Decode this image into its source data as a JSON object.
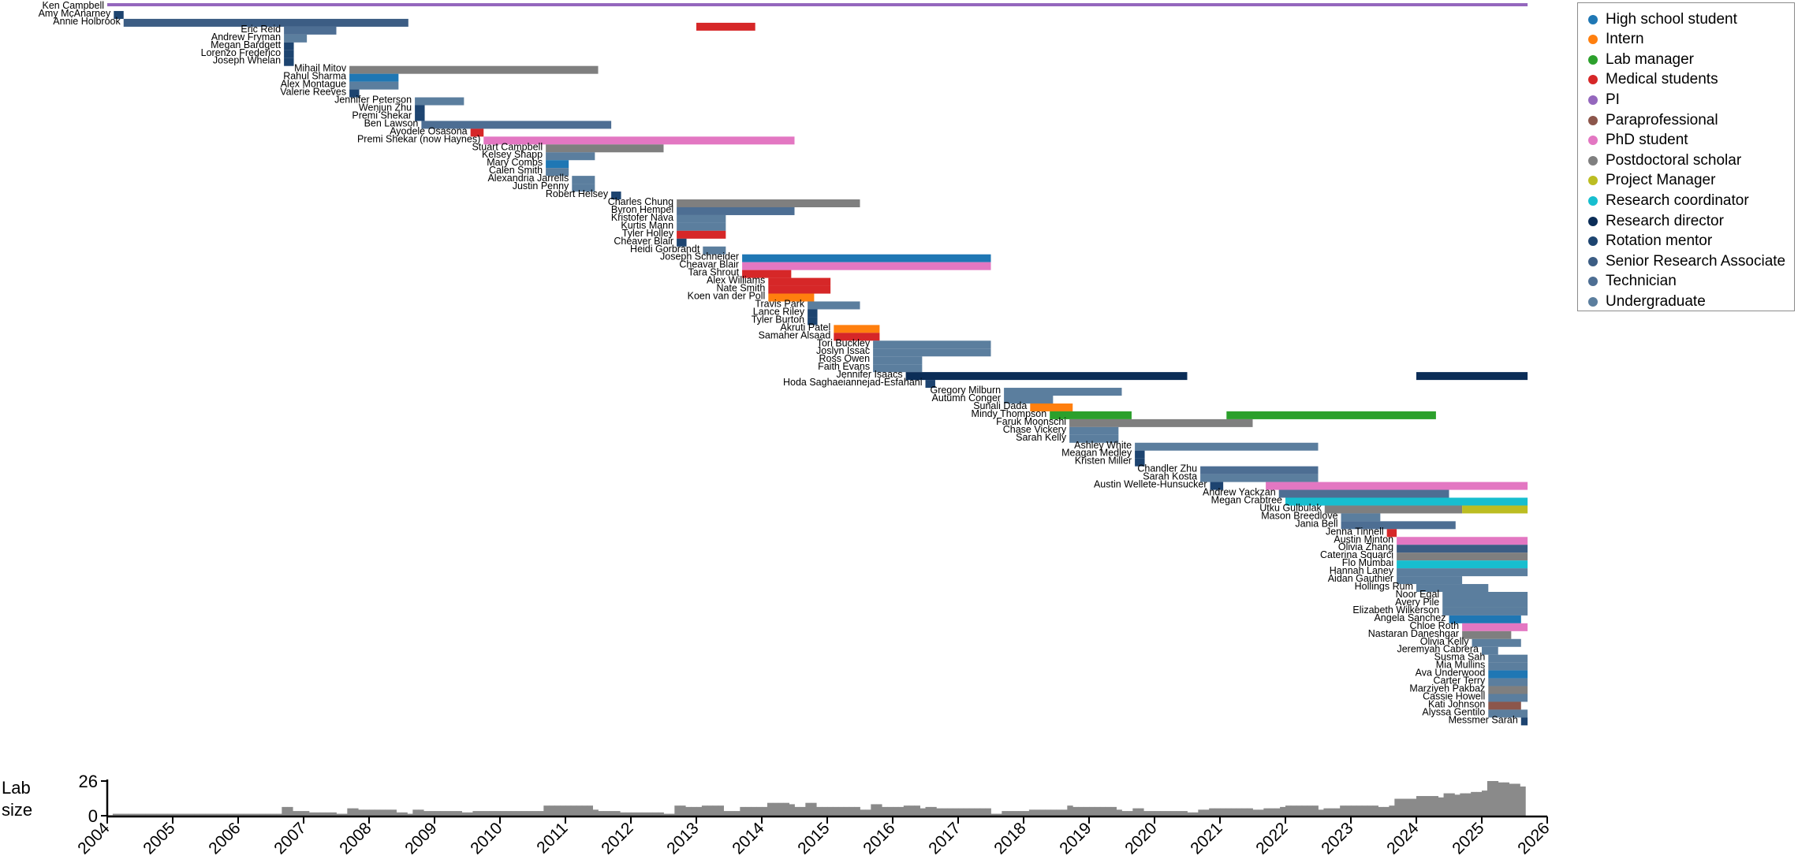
{
  "chart_data": {
    "type": "gantt",
    "x_axis": {
      "type": "time",
      "range": [
        2004,
        2026
      ],
      "ticks": [
        "2004",
        "2005",
        "2006",
        "2007",
        "2008",
        "2009",
        "2010",
        "2011",
        "2012",
        "2013",
        "2014",
        "2015",
        "2016",
        "2017",
        "2018",
        "2019",
        "2020",
        "2021",
        "2022",
        "2023",
        "2024",
        "2025",
        "2026"
      ]
    },
    "lab_size": {
      "ylabel": "Lab size",
      "ylim": [
        0,
        26
      ],
      "yticks": [
        "26",
        "0"
      ]
    },
    "categories": [
      {
        "name": "High school student",
        "color": "#1f77b4"
      },
      {
        "name": "Intern",
        "color": "#ff7f0e"
      },
      {
        "name": "Lab manager",
        "color": "#2ca02c"
      },
      {
        "name": "Medical students",
        "color": "#d62728"
      },
      {
        "name": "PI",
        "color": "#9467bd"
      },
      {
        "name": "Paraprofessional",
        "color": "#8c564b"
      },
      {
        "name": "PhD student",
        "color": "#e377c2"
      },
      {
        "name": "Postdoctoral scholar",
        "color": "#7f7f7f"
      },
      {
        "name": "Project Manager",
        "color": "#bcbd22"
      },
      {
        "name": "Research coordinator",
        "color": "#17becf"
      },
      {
        "name": "Research director",
        "color": "#0b2d57"
      },
      {
        "name": "Rotation mentor",
        "color": "#1d4470"
      },
      {
        "name": "Senior Research Associate",
        "color": "#3c5d84"
      },
      {
        "name": "Technician",
        "color": "#4d6e93"
      },
      {
        "name": "Undergraduate",
        "color": "#5b7e9e"
      }
    ],
    "people": [
      {
        "name": "Ken Campbell",
        "bars": [
          [
            2004.0,
            2025.7,
            4
          ]
        ]
      },
      {
        "name": "Amy McAnarney",
        "bars": [
          [
            2004.1,
            2004.25,
            11
          ]
        ]
      },
      {
        "name": "Annie Holbrook",
        "bars": [
          [
            2004.25,
            2008.6,
            12
          ]
        ]
      },
      {
        "name": "Eric Reid",
        "bars": [
          [
            2006.7,
            2007.5,
            13
          ]
        ]
      },
      {
        "name": "Andrew Fryman",
        "bars": [
          [
            2006.7,
            2007.05,
            14
          ]
        ]
      },
      {
        "name": "Megan Bardgett",
        "bars": [
          [
            2006.7,
            2006.85,
            11
          ]
        ]
      },
      {
        "name": "Lorenzo Frederico",
        "bars": [
          [
            2006.7,
            2006.85,
            11
          ]
        ]
      },
      {
        "name": "Joseph Whelan",
        "bars": [
          [
            2006.7,
            2006.85,
            11
          ]
        ]
      },
      {
        "name": "Mihail Mitov",
        "bars": [
          [
            2007.7,
            2011.5,
            7
          ]
        ]
      },
      {
        "name": "Rahul Sharma",
        "bars": [
          [
            2007.7,
            2008.45,
            0
          ]
        ]
      },
      {
        "name": "Alex Montague",
        "bars": [
          [
            2007.7,
            2008.45,
            14
          ]
        ]
      },
      {
        "name": "Valerie Reeves",
        "bars": [
          [
            2007.7,
            2007.85,
            11
          ]
        ]
      },
      {
        "name": "Jennifer Peterson",
        "bars": [
          [
            2008.7,
            2009.45,
            14
          ]
        ]
      },
      {
        "name": "Wenjun Zhu",
        "bars": [
          [
            2008.7,
            2008.85,
            11
          ]
        ]
      },
      {
        "name": "Premi Shekar",
        "bars": [
          [
            2008.7,
            2008.85,
            11
          ]
        ]
      },
      {
        "name": "Ben Lawson",
        "bars": [
          [
            2008.8,
            2011.7,
            13
          ]
        ]
      },
      {
        "name": "Ayodele Osasona",
        "bars": [
          [
            2009.55,
            2009.75,
            3
          ]
        ]
      },
      {
        "name": "Premi Shekar (now Haynes)",
        "bars": [
          [
            2009.75,
            2014.5,
            6
          ]
        ]
      },
      {
        "name": "Stuart Campbell",
        "bars": [
          [
            2010.7,
            2012.5,
            7
          ]
        ]
      },
      {
        "name": "Kelsey Shapp",
        "bars": [
          [
            2010.7,
            2011.45,
            14
          ]
        ]
      },
      {
        "name": "Mary Combs",
        "bars": [
          [
            2010.7,
            2011.05,
            0
          ]
        ]
      },
      {
        "name": "Calen Smith",
        "bars": [
          [
            2010.7,
            2011.05,
            14
          ]
        ]
      },
      {
        "name": "Alexandria Jarrells",
        "bars": [
          [
            2011.1,
            2011.45,
            14
          ]
        ]
      },
      {
        "name": "Justin Penny",
        "bars": [
          [
            2011.1,
            2011.45,
            14
          ]
        ]
      },
      {
        "name": "Robert Helsey",
        "bars": [
          [
            2011.7,
            2011.85,
            11
          ]
        ]
      },
      {
        "name": "Charles Chung",
        "bars": [
          [
            2012.7,
            2015.5,
            7
          ]
        ]
      },
      {
        "name": "Byron Hempel",
        "bars": [
          [
            2012.7,
            2014.5,
            13
          ]
        ]
      },
      {
        "name": "Kristofer Nava",
        "bars": [
          [
            2012.7,
            2013.45,
            14
          ]
        ]
      },
      {
        "name": "Kurtis Mann",
        "bars": [
          [
            2012.7,
            2013.45,
            14
          ]
        ]
      },
      {
        "name": "Tyler Holley",
        "bars": [
          [
            2012.7,
            2013.45,
            3
          ]
        ]
      },
      {
        "name": "Cheaver Blair",
        "bars": [
          [
            2012.7,
            2012.85,
            11
          ]
        ]
      },
      {
        "name": "Heidi Gorbrandt",
        "bars": [
          [
            2013.1,
            2013.45,
            14
          ]
        ]
      },
      {
        "name": "Joseph Schneider",
        "bars": [
          [
            2013.7,
            2017.5,
            0
          ]
        ]
      },
      {
        "name": "Cheavar Blair",
        "bars": [
          [
            2013.7,
            2017.5,
            6
          ]
        ]
      },
      {
        "name": "Tara Shrout",
        "bars": [
          [
            2013.7,
            2014.45,
            3
          ]
        ]
      },
      {
        "name": "Alex Williams",
        "bars": [
          [
            2014.1,
            2015.05,
            3
          ]
        ]
      },
      {
        "name": "Nate Smith",
        "bars": [
          [
            2014.1,
            2015.05,
            3
          ]
        ]
      },
      {
        "name": "Koen van der Poll",
        "bars": [
          [
            2014.1,
            2014.8,
            1
          ]
        ]
      },
      {
        "name": "Travis Park",
        "bars": [
          [
            2014.7,
            2015.5,
            14
          ]
        ]
      },
      {
        "name": "Lance Riley",
        "bars": [
          [
            2014.7,
            2014.85,
            11
          ]
        ]
      },
      {
        "name": "Tyler Burton",
        "bars": [
          [
            2014.7,
            2014.85,
            11
          ]
        ]
      },
      {
        "name": "Akruti Patel",
        "bars": [
          [
            2015.1,
            2015.8,
            1
          ]
        ]
      },
      {
        "name": "Samaher Alsaad",
        "bars": [
          [
            2015.1,
            2015.8,
            3
          ]
        ]
      },
      {
        "name": "Tori Buckley",
        "bars": [
          [
            2015.7,
            2017.5,
            14
          ]
        ]
      },
      {
        "name": "Joslyn Issac",
        "bars": [
          [
            2015.7,
            2017.5,
            14
          ]
        ]
      },
      {
        "name": "Ross Owen",
        "bars": [
          [
            2015.7,
            2016.45,
            14
          ]
        ]
      },
      {
        "name": "Faith Evans",
        "bars": [
          [
            2015.7,
            2016.45,
            14
          ]
        ]
      },
      {
        "name": "Jennifer Isaacs",
        "bars": [
          [
            2016.2,
            2020.5,
            10
          ],
          [
            2024.0,
            2025.7,
            10
          ]
        ]
      },
      {
        "name": "Hoda Saghaeiannejad-Esfahani",
        "bars": [
          [
            2016.5,
            2016.65,
            11
          ]
        ]
      },
      {
        "name": "Gregory Milburn",
        "bars": [
          [
            2017.7,
            2019.5,
            14
          ]
        ]
      },
      {
        "name": "Autumn Conger",
        "bars": [
          [
            2017.7,
            2018.45,
            14
          ]
        ]
      },
      {
        "name": "Sunali Dada",
        "bars": [
          [
            2018.1,
            2018.75,
            1
          ]
        ]
      },
      {
        "name": "Mindy Thompson",
        "bars": [
          [
            2018.4,
            2019.65,
            2
          ],
          [
            2021.1,
            2024.3,
            2
          ]
        ]
      },
      {
        "name": "Faruk Moonschi",
        "bars": [
          [
            2018.7,
            2021.5,
            7
          ]
        ]
      },
      {
        "name": "Chase Vickery",
        "bars": [
          [
            2018.7,
            2019.45,
            14
          ]
        ]
      },
      {
        "name": "Sarah Kelly",
        "bars": [
          [
            2018.7,
            2019.45,
            14
          ]
        ]
      },
      {
        "name": "Ashley White",
        "bars": [
          [
            2019.7,
            2022.5,
            14
          ]
        ]
      },
      {
        "name": "Meagan Medley",
        "bars": [
          [
            2019.7,
            2019.85,
            11
          ]
        ]
      },
      {
        "name": "Kristen Miller",
        "bars": [
          [
            2019.7,
            2019.85,
            11
          ]
        ]
      },
      {
        "name": "Chandler Zhu",
        "bars": [
          [
            2020.7,
            2022.5,
            13
          ]
        ]
      },
      {
        "name": "Sarah Kosta",
        "bars": [
          [
            2020.7,
            2022.5,
            14
          ]
        ]
      },
      {
        "name": "Austin Wellete-Hunsucker",
        "bars": [
          [
            2020.85,
            2021.05,
            11
          ],
          [
            2021.7,
            2025.7,
            6
          ]
        ]
      },
      {
        "name": "Andrew Yackzan",
        "bars": [
          [
            2021.9,
            2024.5,
            13
          ]
        ]
      },
      {
        "name": "Megan Crabtree",
        "bars": [
          [
            2022.0,
            2025.7,
            9
          ]
        ]
      },
      {
        "name": "Utku Gulbulak",
        "bars": [
          [
            2022.6,
            2024.7,
            7
          ],
          [
            2024.7,
            2025.7,
            8
          ]
        ]
      },
      {
        "name": "Mason Breedlove",
        "bars": [
          [
            2022.85,
            2023.45,
            14
          ]
        ]
      },
      {
        "name": "Jania Bell",
        "bars": [
          [
            2022.85,
            2024.6,
            13
          ]
        ]
      },
      {
        "name": "Jenna Tinnell",
        "bars": [
          [
            2023.55,
            2023.7,
            3
          ]
        ]
      },
      {
        "name": "Austin Minton",
        "bars": [
          [
            2023.7,
            2025.7,
            6
          ]
        ]
      },
      {
        "name": "Olivia Zhang",
        "bars": [
          [
            2023.7,
            2025.7,
            12
          ]
        ]
      },
      {
        "name": "Caterina Squarci",
        "bars": [
          [
            2023.7,
            2025.7,
            7
          ]
        ]
      },
      {
        "name": "Flo Mumbai",
        "bars": [
          [
            2023.7,
            2025.7,
            9
          ]
        ]
      },
      {
        "name": "Hannah Laney",
        "bars": [
          [
            2023.7,
            2025.7,
            14
          ]
        ]
      },
      {
        "name": "Aidan Gauthier",
        "bars": [
          [
            2023.7,
            2024.7,
            14
          ]
        ]
      },
      {
        "name": "Hollings Rum",
        "bars": [
          [
            2024.0,
            2025.1,
            14
          ]
        ]
      },
      {
        "name": "Noor Egal",
        "bars": [
          [
            2024.4,
            2025.7,
            14
          ]
        ]
      },
      {
        "name": "Avery Pile",
        "bars": [
          [
            2024.4,
            2025.7,
            14
          ]
        ]
      },
      {
        "name": "Elizabeth Wilkerson",
        "bars": [
          [
            2024.4,
            2025.7,
            14
          ]
        ]
      },
      {
        "name": "Angela Sanchez",
        "bars": [
          [
            2024.5,
            2025.6,
            0
          ]
        ]
      },
      {
        "name": "Chloe Roth",
        "bars": [
          [
            2024.7,
            2025.7,
            6
          ]
        ]
      },
      {
        "name": "Nastaran Daneshgar",
        "bars": [
          [
            2024.7,
            2025.45,
            7
          ]
        ]
      },
      {
        "name": "Olivia Kelly",
        "bars": [
          [
            2024.85,
            2025.6,
            14
          ]
        ]
      },
      {
        "name": "Jeremyah Cabrera",
        "bars": [
          [
            2025.0,
            2025.25,
            14
          ]
        ]
      },
      {
        "name": "Susma Sah",
        "bars": [
          [
            2025.1,
            2025.7,
            14
          ]
        ]
      },
      {
        "name": "Mia Mullins",
        "bars": [
          [
            2025.1,
            2025.7,
            14
          ]
        ]
      },
      {
        "name": "Ava Underwood",
        "bars": [
          [
            2025.1,
            2025.7,
            0
          ]
        ]
      },
      {
        "name": "Carter Terry",
        "bars": [
          [
            2025.1,
            2025.7,
            14
          ]
        ]
      },
      {
        "name": "Marziyeh Pakbaz",
        "bars": [
          [
            2025.1,
            2025.7,
            7
          ]
        ]
      },
      {
        "name": "Cassie Howell",
        "bars": [
          [
            2025.1,
            2025.7,
            14
          ]
        ]
      },
      {
        "name": "Kati Johnson",
        "bars": [
          [
            2025.1,
            2025.6,
            5
          ]
        ]
      },
      {
        "name": "Alyssa Gentilo",
        "bars": [
          [
            2025.1,
            2025.7,
            14
          ]
        ]
      },
      {
        "name": "Messmer Sarah",
        "bars": [
          [
            2025.6,
            2025.7,
            11
          ]
        ]
      }
    ],
    "extra_bars": [
      {
        "x": [
          2013.0,
          2013.9
        ],
        "row": 2.5,
        "category": 3
      }
    ]
  }
}
